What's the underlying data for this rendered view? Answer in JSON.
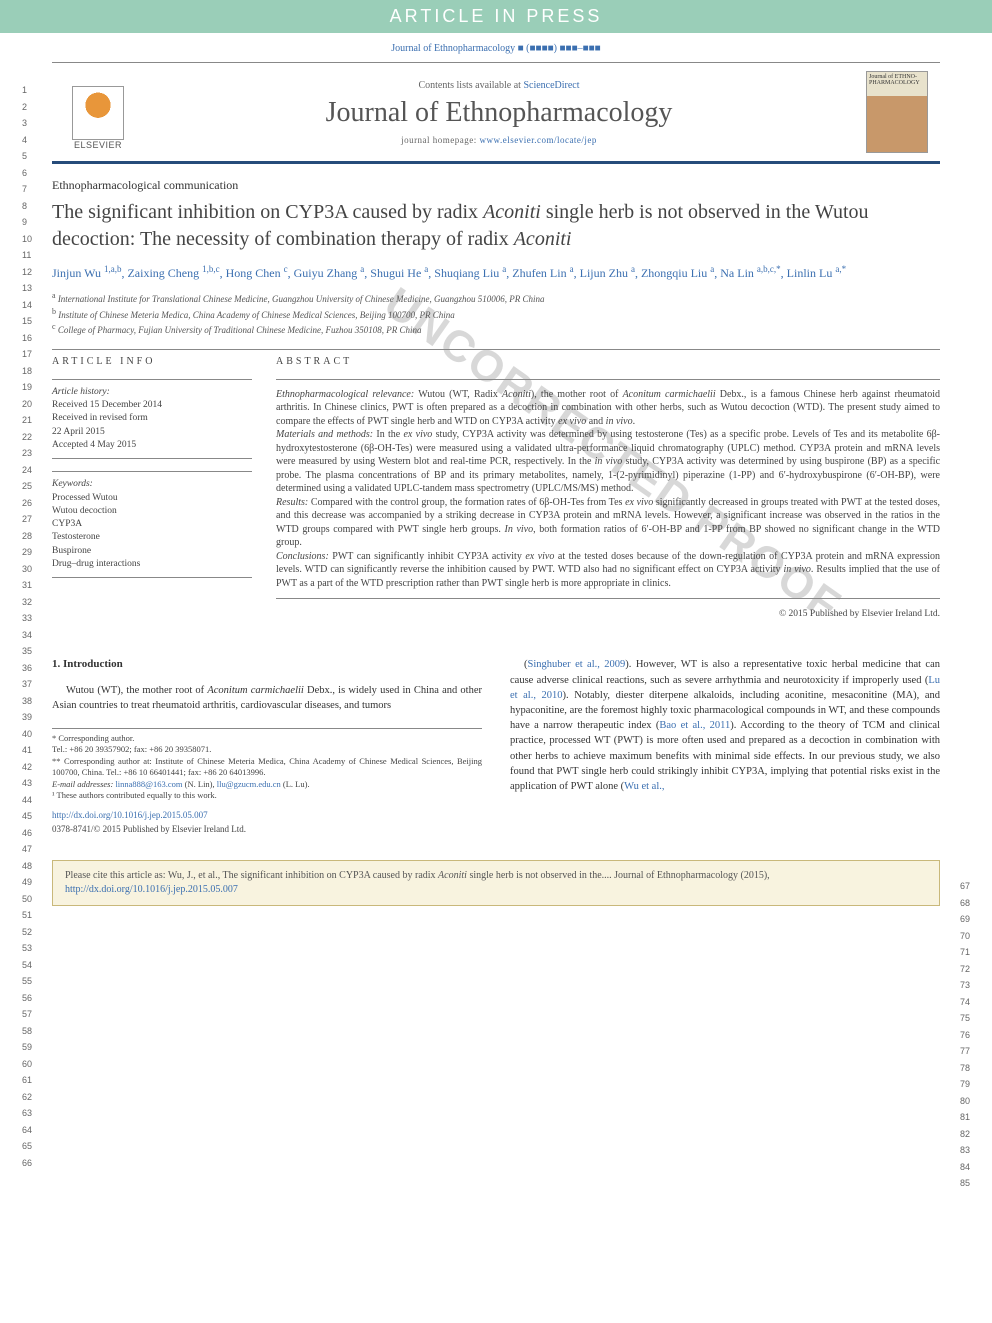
{
  "banner": {
    "text": "ARTICLE IN PRESS"
  },
  "journal_ref": "Journal of Ethnopharmacology ■ (■■■■) ■■■–■■■",
  "header": {
    "contents_text": "Contents lists available at ",
    "contents_link": "ScienceDirect",
    "journal_title": "Journal of Ethnopharmacology",
    "homepage_label": "journal homepage: ",
    "homepage_url": "www.elsevier.com/locate/jep",
    "elsevier_label": "ELSEVIER",
    "cover_label": "Journal of ETHNO-PHARMACOLOGY"
  },
  "article_type": "Ethnopharmacological communication",
  "title": "The significant inhibition on CYP3A caused by radix <em>Aconiti</em> single herb is not observed in the Wutou decoction: The necessity of combination therapy of radix <em>Aconiti</em>",
  "authors_html": "Jinjun Wu <sup>1,a,b</sup>, Zaixing Cheng <sup>1,b,c</sup>, Hong Chen <sup>c</sup>, Guiyu Zhang <sup>a</sup>, Shugui He <sup>a</sup>, Shuqiang Liu <sup>a</sup>, Zhufen Lin <sup>a</sup>, Lijun Zhu <sup>a</sup>, Zhongqiu Liu <sup>a</sup>, Na Lin <sup>a,b,c,*</sup>, Linlin Lu <sup>a,*</sup>",
  "affiliations": [
    {
      "sup": "a",
      "text": "International Institute for Translational Chinese Medicine, Guangzhou University of Chinese Medicine, Guangzhou 510006, PR China"
    },
    {
      "sup": "b",
      "text": "Institute of Chinese Meteria Medica, China Academy of Chinese Medical Sciences, Beijing 100700, PR China"
    },
    {
      "sup": "c",
      "text": "College of Pharmacy, Fujian University of Traditional Chinese Medicine, Fuzhou 350108, PR China"
    }
  ],
  "info": {
    "heading": "ARTICLE INFO",
    "history_label": "Article history:",
    "history": [
      "Received 15 December 2014",
      "Received in revised form",
      "22 April 2015",
      "Accepted 4 May 2015"
    ],
    "keywords_label": "Keywords:",
    "keywords": [
      "Processed Wutou",
      "Wutou decoction",
      "CYP3A",
      "Testosterone",
      "Buspirone",
      "Drug–drug interactions"
    ]
  },
  "abstract": {
    "heading": "ABSTRACT",
    "sections": [
      {
        "label": "Ethnopharmacological relevance:",
        "text": " Wutou (WT, Radix <em>Aconiti</em>), the mother root of <em>Aconitum carmichaelii</em> Debx., is a famous Chinese herb against rheumatoid arthritis. In Chinese clinics, PWT is often prepared as a decoction in combination with other herbs, such as Wutou decoction (WTD). The present study aimed to compare the effects of PWT single herb and WTD on CYP3A activity <em>ex vivo</em> and <em>in vivo</em>."
      },
      {
        "label": "Materials and methods:",
        "text": " In the <em>ex vivo</em> study, CYP3A activity was determined by using testosterone (Tes) as a specific probe. Levels of Tes and its metabolite 6β-hydroxytestosterone (6β-OH-Tes) were measured using a validated ultra-performance liquid chromatography (UPLC) method. CYP3A protein and mRNA levels were measured by using Western blot and real-time PCR, respectively. In the <em>in vivo</em> study, CYP3A activity was determined by using buspirone (BP) as a specific probe. The plasma concentrations of BP and its primary metabolites, namely, 1-(2-pyrimidinyl) piperazine (1-PP) and 6′-hydroxybuspirone (6′-OH-BP), were determined using a validated UPLC-tandem mass spectrometry (UPLC/MS/MS) method."
      },
      {
        "label": "Results:",
        "text": " Compared with the control group, the formation rates of 6β-OH-Tes from Tes <em>ex vivo</em> significantly decreased in groups treated with PWT at the tested doses, and this decrease was accompanied by a striking decrease in CYP3A protein and mRNA levels. However, a significant increase was observed in the ratios in the WTD groups compared with PWT single herb groups. <em>In vivo</em>, both formation ratios of 6′-OH-BP and 1-PP from BP showed no significant change in the WTD group."
      },
      {
        "label": "Conclusions:",
        "text": " PWT can significantly inhibit CYP3A activity <em>ex vivo</em> at the tested doses because of the down-regulation of CYP3A protein and mRNA expression levels. WTD can significantly reverse the inhibition caused by PWT. WTD also had no significant effect on CYP3A activity <em>in vivo</em>. Results implied that the use of PWT as a part of the WTD prescription rather than PWT single herb is more appropriate in clinics."
      }
    ],
    "copyright": "© 2015 Published by Elsevier Ireland Ltd."
  },
  "body": {
    "section_number": "1.",
    "section_title": "Introduction",
    "left_para": "Wutou (WT), the mother root of <em>Aconitum carmichaelii</em> Debx., is widely used in China and other Asian countries to treat rheumatoid arthritis, cardiovascular diseases, and tumors",
    "right_para": "(<a>Singhuber et al., 2009</a>). However, WT is also a representative toxic herbal medicine that can cause adverse clinical reactions, such as severe arrhythmia and neurotoxicity if improperly used (<a>Lu et al., 2010</a>). Notably, diester diterpene alkaloids, including aconitine, mesaconitine (MA), and hypaconitine, are the foremost highly toxic pharmacological compounds in WT, and these compounds have a narrow therapeutic index (<a>Bao et al., 2011</a>). According to the theory of TCM and clinical practice, processed WT (PWT) is more often used and prepared as a decoction in combination with other herbs to achieve maximum benefits with minimal side effects. In our previous study, we also found that PWT single herb could strikingly inhibit CYP3A, implying that potential risks exist in the application of PWT alone (<a>Wu et al.,</a>"
  },
  "footnotes": {
    "corr1": "* Corresponding author.",
    "tel1": "Tel.: +86 20 39357902; fax: +86 20 39358071.",
    "corr2": "** Corresponding author at: Institute of Chinese Meteria Medica, China Academy of Chinese Medical Sciences, Beijing 100700, China. Tel.: +86 10 66401441; fax: +86 20 64013996.",
    "emails_label": "E-mail addresses:",
    "email1": "linna888@163.com",
    "email1_name": "(N. Lin),",
    "email2": "llu@gzucm.edu.cn",
    "email2_name": "(L. Lu).",
    "equal": "¹ These authors contributed equally to this work."
  },
  "doi": {
    "url": "http://dx.doi.org/10.1016/j.jep.2015.05.007",
    "issn": "0378-8741/© 2015 Published by Elsevier Ireland Ltd."
  },
  "citation": {
    "text": "Please cite this article as: Wu, J., et al., The significant inhibition on CYP3A caused by radix <em>Aconiti</em> single herb is not observed in the.... Journal of Ethnopharmacology (2015), ",
    "url": "http://dx.doi.org/10.1016/j.jep.2015.05.007"
  },
  "line_numbers": {
    "left_start": 1,
    "left_end": 66,
    "right_start": 67,
    "right_end": 85
  },
  "watermark": "UNCORRECTED PROOF",
  "colors": {
    "banner_bg": "#9aceb8",
    "link": "#3b6fb0",
    "header_border": "#264c7a",
    "text": "#444444",
    "citation_bg": "#f8f3df",
    "citation_border": "#c9b87a"
  }
}
